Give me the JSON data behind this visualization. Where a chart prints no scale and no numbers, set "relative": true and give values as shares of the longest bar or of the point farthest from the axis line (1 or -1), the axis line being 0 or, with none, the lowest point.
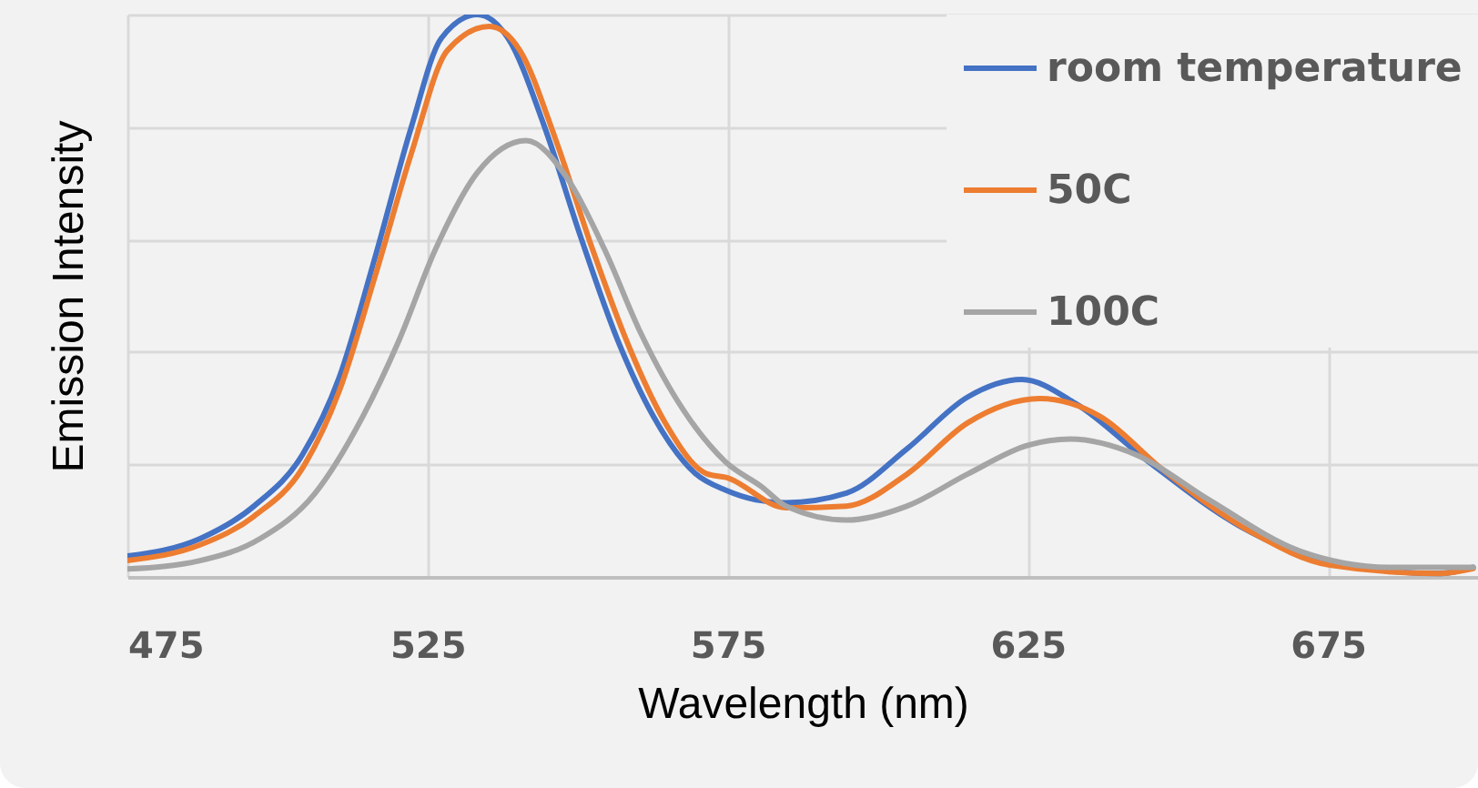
{
  "chart_data": {
    "type": "line",
    "relative": true,
    "xlabel": "Wavelength (nm)",
    "ylabel": "Emission Intensity",
    "xlim": [
      475,
      700
    ],
    "xticks": [
      475,
      525,
      575,
      625,
      675
    ],
    "grid": true,
    "legend": "top right",
    "line_style": "solid",
    "marker": "none",
    "series": [
      {
        "name": "room temperature",
        "color": "#4472c4",
        "x": [
          475,
          487.1,
          496.1,
          504.2,
          510.3,
          516.3,
          522.3,
          527.3,
          533.3,
          538.4,
          544.5,
          550.5,
          556.6,
          562.6,
          569.6,
          574.7,
          579.7,
          584.7,
          594.8,
          604.9,
          615,
          624,
          633,
          645.1,
          660.2,
          675.3,
          693.4,
          699.2
        ],
        "values": [
          0.037,
          0.068,
          0.126,
          0.218,
          0.355,
          0.57,
          0.8,
          0.958,
          1,
          0.958,
          0.8,
          0.605,
          0.423,
          0.286,
          0.184,
          0.154,
          0.137,
          0.132,
          0.149,
          0.228,
          0.32,
          0.351,
          0.308,
          0.205,
          0.091,
          0.026,
          0.006,
          0.017
        ]
      },
      {
        "name": "50C",
        "color": "#ed7d31",
        "x": [
          475,
          487.1,
          496.1,
          504.2,
          510.3,
          516.3,
          522.3,
          528.3,
          535.3,
          540.4,
          546.4,
          552.5,
          558.5,
          564.6,
          571.6,
          574.7,
          584.7,
          594.8,
          604.9,
          615,
          627,
          637.1,
          647.1,
          662.2,
          675.3,
          693.4,
          699.2
        ],
        "values": [
          0.029,
          0.057,
          0.108,
          0.194,
          0.331,
          0.536,
          0.753,
          0.936,
          0.979,
          0.936,
          0.776,
          0.582,
          0.411,
          0.274,
          0.183,
          0.177,
          0.123,
          0.126,
          0.183,
          0.274,
          0.317,
          0.285,
          0.194,
          0.08,
          0.021,
          0.006,
          0.015
        ]
      },
      {
        "name": "100C",
        "color": "#a5a5a5",
        "x": [
          475,
          487.1,
          497.1,
          506.2,
          514.2,
          520.3,
          526.3,
          533.3,
          541.4,
          548.4,
          554.5,
          560.5,
          567.6,
          574.6,
          580.7,
          584.7,
          594.8,
          604.9,
          615,
          625,
          632.1,
          643.1,
          655.2,
          670.3,
          685.4,
          699.2
        ],
        "values": [
          0.014,
          0.029,
          0.068,
          0.148,
          0.285,
          0.422,
          0.582,
          0.719,
          0.776,
          0.707,
          0.582,
          0.434,
          0.297,
          0.205,
          0.16,
          0.126,
          0.101,
          0.126,
          0.183,
          0.234,
          0.245,
          0.217,
          0.137,
          0.046,
          0.017,
          0.017
        ]
      }
    ]
  }
}
